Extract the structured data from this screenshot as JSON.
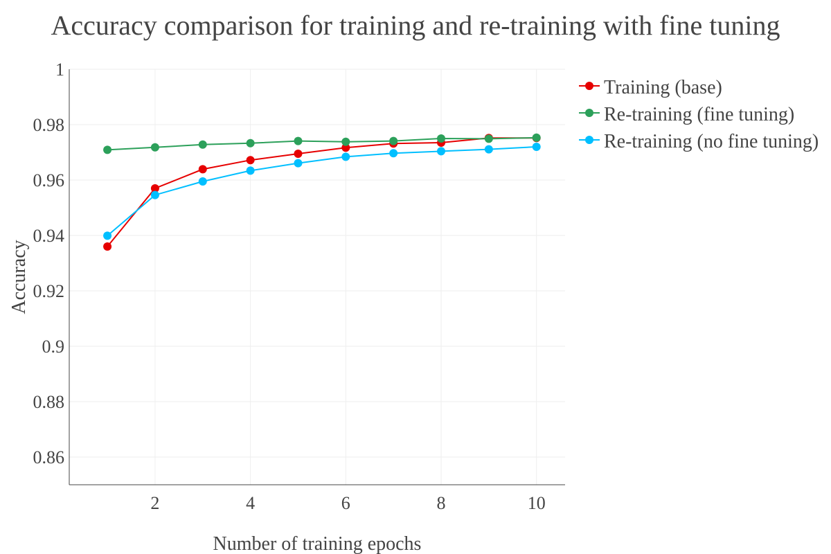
{
  "chart_data": {
    "type": "line",
    "title": "Accuracy comparison for training and re-training with fine tuning",
    "xlabel": "Number of training epochs",
    "ylabel": "Accuracy",
    "x": [
      1,
      2,
      3,
      4,
      5,
      6,
      7,
      8,
      9,
      10
    ],
    "xlim": [
      0.2,
      10.6
    ],
    "ylim": [
      0.85,
      1.0
    ],
    "x_ticks": [
      2,
      4,
      6,
      8,
      10
    ],
    "x_tick_labels": [
      "2",
      "4",
      "6",
      "8",
      "10"
    ],
    "y_ticks": [
      0.86,
      0.88,
      0.9,
      0.92,
      0.94,
      0.96,
      0.98,
      1.0
    ],
    "y_tick_labels": [
      "0.86",
      "0.88",
      "0.9",
      "0.92",
      "0.94",
      "0.96",
      "0.98",
      "1"
    ],
    "grid": true,
    "legend_position": "top-right-outside",
    "series": [
      {
        "name": "Training (base)",
        "color": "#e60000",
        "values": [
          0.936,
          0.957,
          0.9639,
          0.9672,
          0.9695,
          0.9717,
          0.9732,
          0.9735,
          0.9752,
          0.9752
        ]
      },
      {
        "name": "Re-training (fine tuning)",
        "color": "#2ca05a",
        "values": [
          0.9709,
          0.9718,
          0.9728,
          0.9733,
          0.9741,
          0.9738,
          0.9741,
          0.975,
          0.9749,
          0.9753
        ]
      },
      {
        "name": "Re-training (no fine tuning)",
        "color": "#00bfff",
        "values": [
          0.9399,
          0.9546,
          0.9595,
          0.9634,
          0.9661,
          0.9684,
          0.9697,
          0.9704,
          0.9711,
          0.972
        ]
      }
    ]
  }
}
